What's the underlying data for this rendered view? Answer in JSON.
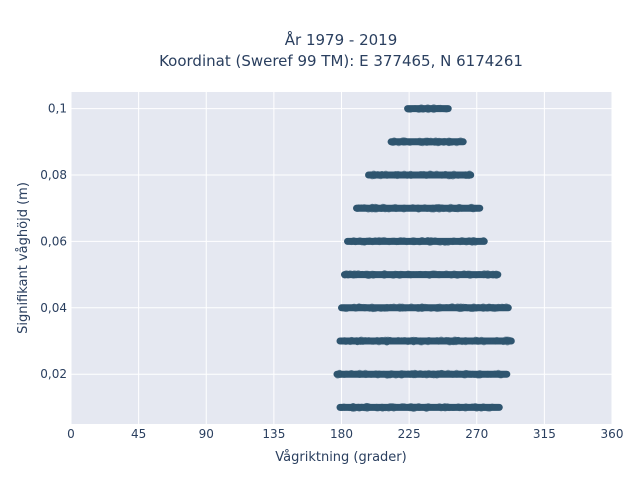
{
  "chart_data": {
    "type": "scatter",
    "title": [
      "År 1979 - 2019",
      "Koordinat (Sweref 99 TM): E 377465, N 6174261"
    ],
    "xlabel": "Vågriktning (grader)",
    "ylabel": "Signifikant våghöjd (m)",
    "xlim": [
      0,
      360
    ],
    "ylim": [
      0.005,
      0.105
    ],
    "xticks": [
      0,
      45,
      90,
      135,
      180,
      225,
      270,
      315,
      360
    ],
    "xtick_labels": [
      "0",
      "45",
      "90",
      "135",
      "180",
      "225",
      "270",
      "315",
      "360"
    ],
    "yticks": [
      0.02,
      0.04,
      0.06,
      0.08,
      0.1
    ],
    "ytick_labels": [
      "0,02",
      "0,04",
      "0,06",
      "0,08",
      "0,1"
    ],
    "grid": true,
    "colors": {
      "marker": "#2f5570",
      "plot_bg": "#e5e8f1",
      "grid": "#ffffff"
    },
    "bands": [
      {
        "y": 0.01,
        "x_min": 179,
        "x_max": 285
      },
      {
        "y": 0.02,
        "x_min": 177,
        "x_max": 290
      },
      {
        "y": 0.03,
        "x_min": 179,
        "x_max": 293
      },
      {
        "y": 0.04,
        "x_min": 180,
        "x_max": 291
      },
      {
        "y": 0.05,
        "x_min": 182,
        "x_max": 284
      },
      {
        "y": 0.06,
        "x_min": 184,
        "x_max": 275
      },
      {
        "y": 0.07,
        "x_min": 190,
        "x_max": 272
      },
      {
        "y": 0.08,
        "x_min": 198,
        "x_max": 266
      },
      {
        "y": 0.09,
        "x_min": 213,
        "x_max": 261
      },
      {
        "y": 0.1,
        "x_min": 224,
        "x_max": 251
      }
    ]
  }
}
